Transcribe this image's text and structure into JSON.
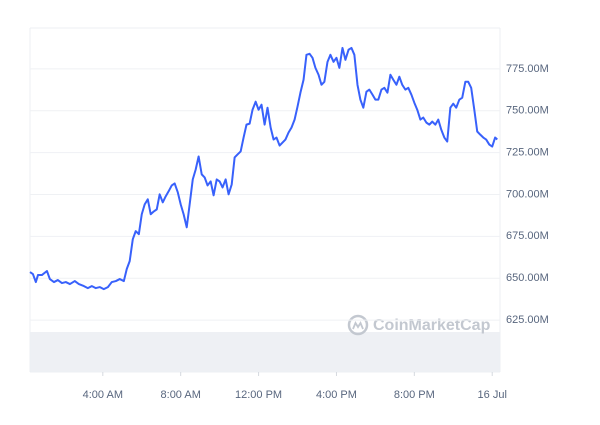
{
  "chart_data": {
    "type": "line",
    "watermark": "CoinMarketCap",
    "xlim": [
      0.26,
      24.4
    ],
    "ylim": [
      594,
      799.4
    ],
    "xticks": [
      {
        "value": 4,
        "label": "4:00 AM"
      },
      {
        "value": 8,
        "label": "8:00 AM"
      },
      {
        "value": 12,
        "label": "12:00 PM"
      },
      {
        "value": 16,
        "label": "4:00 PM"
      },
      {
        "value": 20,
        "label": "8:00 PM"
      },
      {
        "value": 24,
        "label": "16 Jul"
      }
    ],
    "yticks": [
      {
        "value": 625,
        "label": "625.00M"
      },
      {
        "value": 650,
        "label": "650.00M"
      },
      {
        "value": 675,
        "label": "675.00M"
      },
      {
        "value": 700,
        "label": "700.00M"
      },
      {
        "value": 725,
        "label": "725.00M"
      },
      {
        "value": 750,
        "label": "750.00M"
      },
      {
        "value": 775,
        "label": "775.00M"
      }
    ],
    "grid": true,
    "series": [
      {
        "color": "#3861fb",
        "x": [
          0.26,
          0.41,
          0.56,
          0.67,
          0.87,
          1.13,
          1.28,
          1.49,
          1.69,
          1.9,
          2.1,
          2.31,
          2.56,
          2.77,
          3.03,
          3.23,
          3.44,
          3.64,
          3.85,
          4.05,
          4.26,
          4.46,
          4.67,
          4.87,
          5.08,
          5.23,
          5.38,
          5.54,
          5.69,
          5.85,
          6.0,
          6.15,
          6.31,
          6.46,
          6.62,
          6.77,
          6.92,
          7.08,
          7.23,
          7.38,
          7.54,
          7.69,
          7.85,
          8.0,
          8.15,
          8.31,
          8.46,
          8.62,
          8.77,
          8.92,
          9.08,
          9.23,
          9.38,
          9.54,
          9.69,
          9.85,
          10.0,
          10.15,
          10.31,
          10.46,
          10.62,
          10.77,
          10.92,
          11.08,
          11.23,
          11.38,
          11.54,
          11.69,
          11.85,
          12.0,
          12.15,
          12.31,
          12.46,
          12.62,
          12.77,
          12.92,
          13.08,
          13.23,
          13.38,
          13.54,
          13.69,
          13.85,
          14.0,
          14.15,
          14.31,
          14.46,
          14.62,
          14.77,
          14.92,
          15.08,
          15.23,
          15.38,
          15.54,
          15.69,
          15.85,
          16.0,
          16.15,
          16.31,
          16.46,
          16.62,
          16.77,
          16.92,
          17.08,
          17.23,
          17.38,
          17.54,
          17.69,
          17.85,
          18.0,
          18.15,
          18.31,
          18.46,
          18.62,
          18.77,
          18.92,
          19.08,
          19.23,
          19.38,
          19.54,
          19.69,
          19.85,
          20.0,
          20.15,
          20.31,
          20.46,
          20.62,
          20.77,
          20.92,
          21.08,
          21.23,
          21.38,
          21.54,
          21.69,
          21.85,
          22.0,
          22.15,
          22.31,
          22.46,
          22.62,
          22.77,
          22.92,
          23.08,
          23.23,
          23.38,
          23.54,
          23.69,
          23.85,
          24.0,
          24.15,
          24.26
        ],
        "values": [
          653.7,
          652.5,
          647.7,
          651.9,
          651.9,
          654.3,
          649.5,
          647.7,
          648.9,
          647.1,
          647.7,
          646.5,
          648.3,
          646.5,
          645.3,
          644.1,
          645.3,
          644.1,
          644.7,
          643.5,
          644.7,
          647.7,
          648.3,
          649.5,
          648.3,
          655.5,
          660.2,
          673.3,
          678.1,
          676.3,
          688.2,
          694.1,
          697.1,
          688.2,
          689.9,
          691.1,
          700.1,
          695.3,
          698.9,
          701.9,
          705.4,
          706.6,
          701.3,
          694.1,
          688.2,
          680.4,
          694.1,
          709.0,
          714.9,
          722.7,
          712.0,
          710.2,
          705.4,
          707.8,
          699.5,
          709.0,
          707.8,
          704.2,
          709.0,
          700.1,
          706.0,
          722.1,
          723.9,
          725.7,
          734.0,
          741.7,
          742.3,
          750.6,
          755.4,
          750.6,
          753.6,
          741.7,
          751.8,
          739.9,
          732.8,
          734.0,
          729.2,
          731.0,
          732.8,
          737.0,
          739.9,
          744.7,
          752.4,
          760.8,
          768.5,
          783.4,
          784.0,
          781.6,
          775.6,
          771.5,
          765.5,
          767.3,
          779.2,
          783.4,
          779.2,
          781.6,
          775.6,
          787.5,
          780.4,
          786.4,
          787.5,
          783.4,
          765.5,
          756.6,
          751.8,
          761.4,
          762.6,
          759.6,
          756.6,
          756.6,
          762.6,
          763.7,
          760.8,
          771.5,
          768.5,
          765.5,
          770.3,
          765.5,
          762.6,
          763.7,
          759.6,
          754.8,
          750.6,
          744.7,
          745.9,
          742.9,
          741.7,
          743.5,
          741.7,
          744.7,
          738.8,
          734.0,
          731.6,
          751.8,
          754.2,
          751.8,
          756.6,
          757.8,
          767.3,
          767.3,
          763.7,
          750.6,
          737.6,
          735.8,
          734.0,
          732.8,
          729.8,
          728.6,
          734.0,
          732.8
        ]
      }
    ]
  }
}
